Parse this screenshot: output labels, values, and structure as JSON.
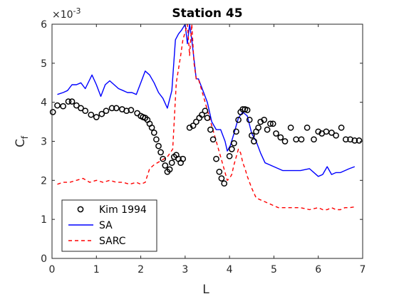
{
  "chart_data": {
    "type": "line",
    "title": "Station 45",
    "xlabel": "L",
    "ylabel": "C",
    "ylabel_subscript": "f",
    "y_exponent_label": "×10",
    "y_exponent_power": "-3",
    "xlim": [
      0,
      7
    ],
    "ylim": [
      0,
      6
    ],
    "x_ticks": [
      "0",
      "1",
      "2",
      "3",
      "4",
      "5",
      "6",
      "7"
    ],
    "y_ticks": [
      "0",
      "1",
      "2",
      "3",
      "4",
      "5",
      "6"
    ],
    "grid": false,
    "legend_position": "bottom-left",
    "series": [
      {
        "name": "Kim 1994",
        "style": "markers",
        "marker": "circle",
        "color": "#000000",
        "x": [
          0.02,
          0.12,
          0.25,
          0.37,
          0.45,
          0.55,
          0.65,
          0.75,
          0.88,
          1.0,
          1.12,
          1.22,
          1.35,
          1.45,
          1.58,
          1.68,
          1.78,
          1.92,
          2.0,
          2.05,
          2.1,
          2.15,
          2.2,
          2.25,
          2.3,
          2.35,
          2.4,
          2.45,
          2.5,
          2.55,
          2.6,
          2.65,
          2.7,
          2.75,
          2.8,
          2.85,
          2.9,
          2.95,
          3.1,
          3.18,
          3.25,
          3.32,
          3.38,
          3.45,
          3.5,
          3.57,
          3.63,
          3.7,
          3.77,
          3.82,
          3.88,
          4.0,
          4.05,
          4.1,
          4.15,
          4.2,
          4.25,
          4.3,
          4.35,
          4.4,
          4.45,
          4.5,
          4.55,
          4.6,
          4.65,
          4.7,
          4.78,
          4.85,
          4.92,
          4.98,
          5.05,
          5.15,
          5.25,
          5.38,
          5.5,
          5.62,
          5.75,
          5.9,
          6.0,
          6.08,
          6.18,
          6.3,
          6.4,
          6.52,
          6.62,
          6.72,
          6.82,
          6.92
        ],
        "y": [
          3.75,
          3.92,
          3.9,
          4.02,
          4.02,
          3.92,
          3.85,
          3.78,
          3.68,
          3.62,
          3.7,
          3.78,
          3.85,
          3.85,
          3.82,
          3.78,
          3.8,
          3.72,
          3.65,
          3.62,
          3.6,
          3.55,
          3.45,
          3.35,
          3.22,
          3.05,
          2.88,
          2.72,
          2.55,
          2.38,
          2.22,
          2.28,
          2.45,
          2.6,
          2.65,
          2.55,
          2.45,
          2.55,
          3.35,
          3.4,
          3.5,
          3.6,
          3.68,
          3.78,
          3.6,
          3.3,
          3.05,
          2.55,
          2.22,
          2.05,
          1.92,
          2.62,
          2.8,
          2.95,
          3.25,
          3.55,
          3.75,
          3.82,
          3.82,
          3.8,
          3.55,
          3.15,
          3.0,
          3.25,
          3.35,
          3.5,
          3.55,
          3.3,
          3.45,
          3.45,
          3.2,
          3.1,
          3.0,
          3.35,
          3.05,
          3.05,
          3.35,
          3.05,
          3.25,
          3.2,
          3.25,
          3.22,
          3.15,
          3.35,
          3.05,
          3.05,
          3.02,
          3.02
        ]
      },
      {
        "name": "SA",
        "style": "solid",
        "color": "#0000ff",
        "x": [
          0.12,
          0.25,
          0.35,
          0.45,
          0.55,
          0.65,
          0.75,
          0.9,
          1.0,
          1.1,
          1.2,
          1.3,
          1.4,
          1.5,
          1.6,
          1.7,
          1.8,
          1.9,
          2.0,
          2.1,
          2.2,
          2.3,
          2.4,
          2.5,
          2.6,
          2.7,
          2.78,
          2.85,
          2.92,
          3.0,
          3.05,
          3.1,
          3.15,
          3.2,
          3.25,
          3.3,
          3.4,
          3.5,
          3.6,
          3.7,
          3.8,
          3.9,
          3.95,
          4.02,
          4.1,
          4.2,
          4.3,
          4.4,
          4.5,
          4.6,
          4.7,
          4.8,
          4.9,
          5.0,
          5.2,
          5.4,
          5.6,
          5.8,
          6.0,
          6.1,
          6.2,
          6.3,
          6.4,
          6.5,
          6.6,
          6.7,
          6.82
        ],
        "y": [
          4.2,
          4.25,
          4.3,
          4.45,
          4.45,
          4.5,
          4.35,
          4.7,
          4.45,
          4.15,
          4.45,
          4.55,
          4.45,
          4.35,
          4.3,
          4.25,
          4.25,
          4.2,
          4.5,
          4.8,
          4.7,
          4.5,
          4.25,
          4.1,
          3.85,
          4.3,
          5.6,
          5.75,
          5.85,
          6.0,
          5.5,
          6.0,
          5.6,
          5.1,
          4.6,
          4.6,
          4.3,
          4.0,
          3.5,
          3.3,
          3.3,
          3.0,
          2.75,
          2.9,
          3.2,
          3.6,
          3.75,
          3.65,
          3.2,
          3.0,
          2.7,
          2.45,
          2.4,
          2.35,
          2.25,
          2.25,
          2.25,
          2.3,
          2.1,
          2.15,
          2.35,
          2.15,
          2.2,
          2.2,
          2.25,
          2.3,
          2.35
        ]
      },
      {
        "name": "SARC",
        "style": "dashed",
        "color": "#ff0000",
        "x": [
          0.12,
          0.25,
          0.4,
          0.55,
          0.7,
          0.85,
          1.0,
          1.15,
          1.3,
          1.45,
          1.6,
          1.75,
          1.9,
          2.0,
          2.1,
          2.2,
          2.3,
          2.45,
          2.6,
          2.72,
          2.8,
          2.9,
          2.95,
          3.0,
          3.05,
          3.1,
          3.15,
          3.2,
          3.25,
          3.3,
          3.4,
          3.5,
          3.6,
          3.7,
          3.8,
          3.9,
          3.95,
          4.0,
          4.05,
          4.1,
          4.15,
          4.2,
          4.25,
          4.3,
          4.35,
          4.4,
          4.5,
          4.6,
          4.7,
          4.8,
          4.9,
          5.0,
          5.1,
          5.2,
          5.4,
          5.6,
          5.8,
          6.0,
          6.1,
          6.2,
          6.3,
          6.4,
          6.5,
          6.6,
          6.7,
          6.82
        ],
        "y": [
          1.9,
          1.95,
          1.95,
          2.0,
          2.05,
          1.95,
          2.0,
          1.95,
          2.0,
          1.95,
          1.95,
          1.9,
          1.95,
          1.9,
          1.95,
          2.3,
          2.4,
          2.5,
          2.6,
          2.8,
          4.5,
          5.2,
          5.6,
          5.8,
          6.0,
          5.2,
          6.0,
          5.0,
          4.6,
          4.6,
          4.2,
          3.8,
          3.4,
          3.0,
          2.6,
          2.2,
          2.0,
          2.05,
          2.15,
          2.4,
          2.6,
          2.8,
          2.7,
          2.45,
          2.3,
          2.1,
          1.8,
          1.55,
          1.5,
          1.45,
          1.4,
          1.35,
          1.3,
          1.3,
          1.3,
          1.3,
          1.25,
          1.3,
          1.25,
          1.25,
          1.3,
          1.25,
          1.25,
          1.3,
          1.3,
          1.32
        ]
      }
    ]
  }
}
